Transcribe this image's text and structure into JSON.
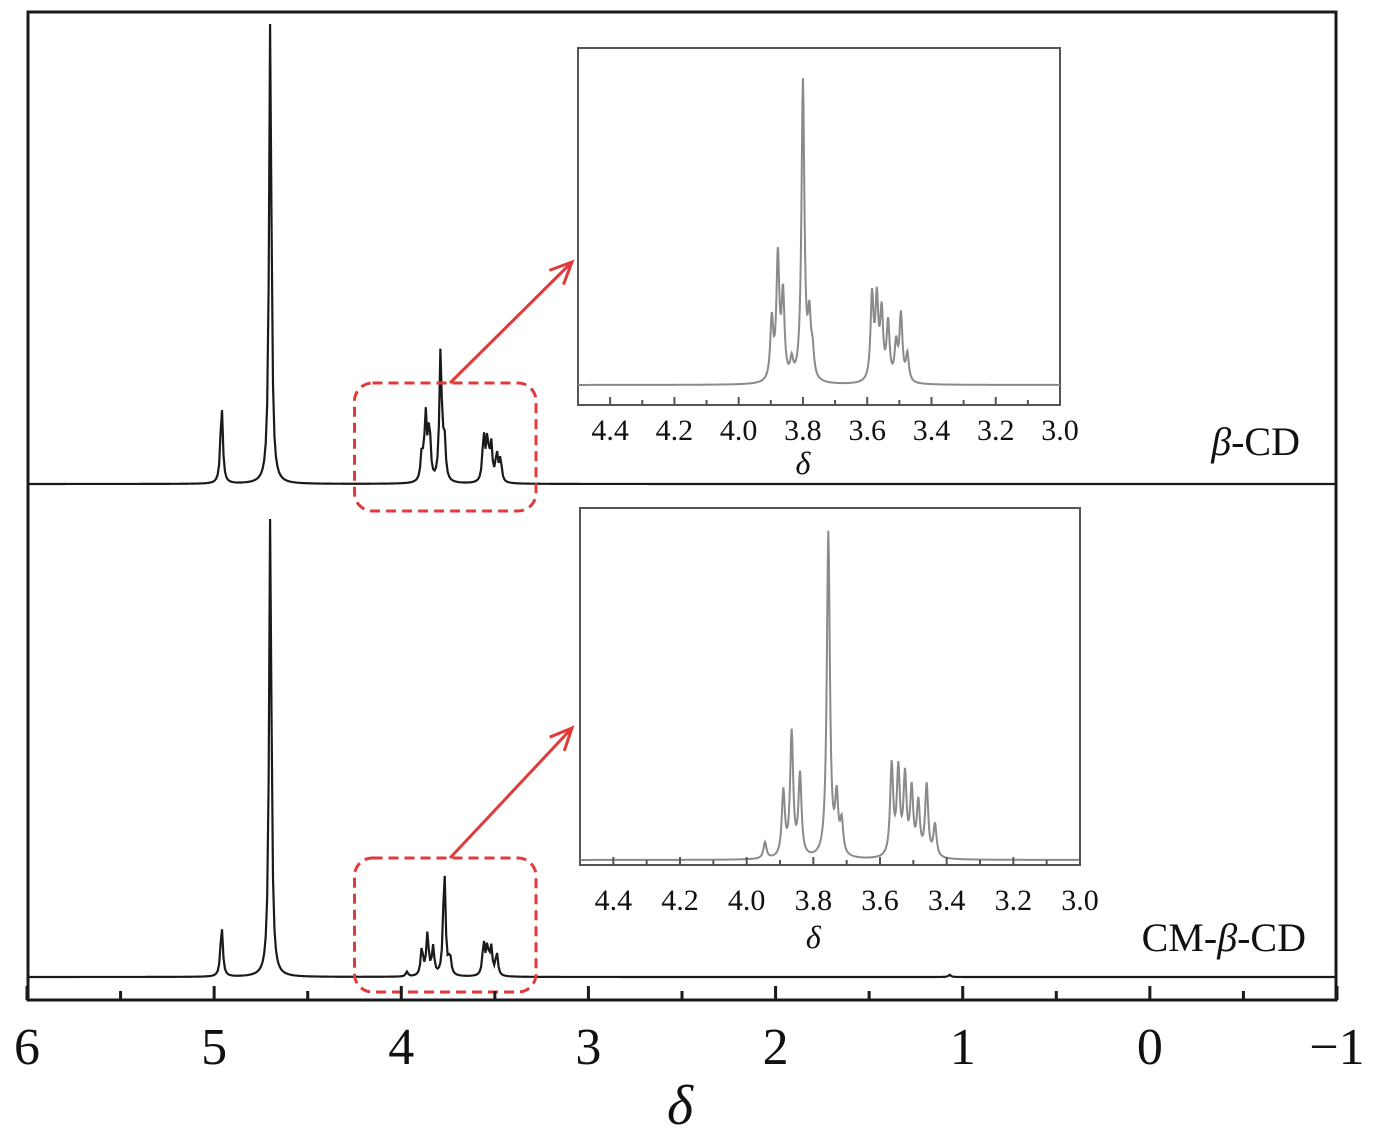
{
  "colors": {
    "frame": "#1a1a1a",
    "main_trace": "#1a1a1a",
    "inset_trace": "#8a8a8a",
    "highlight": "#e03a3a"
  },
  "chart_data": [
    {
      "type": "line",
      "role": "main spectrum",
      "x_axis": {
        "label": "δ",
        "range": [
          6,
          -1
        ],
        "reversed": true,
        "major_ticks": [
          6,
          5,
          4,
          3,
          2,
          1,
          0,
          -1
        ],
        "tick_labels": [
          "6",
          "5",
          "4",
          "3",
          "2",
          "1",
          "0",
          "−1"
        ],
        "minor_ticks": [
          5.5,
          4.5,
          3.5,
          2.5,
          1.5,
          0.5,
          -0.5
        ]
      },
      "y_axis": {
        "label": "",
        "ticks": false
      },
      "grid": false,
      "series": [
        {
          "name": "β-CD",
          "label_prefix": "",
          "label_italic": "β",
          "label_suffix": "-CD",
          "peaks": [
            {
              "x": 4.96,
              "height": 0.17
            },
            {
              "x": 4.7,
              "height": 1.0
            },
            {
              "x": 3.89,
              "height": 0.06
            },
            {
              "x": 3.87,
              "height": 0.14
            },
            {
              "x": 3.85,
              "height": 0.12
            },
            {
              "x": 3.79,
              "height": 0.28
            },
            {
              "x": 3.77,
              "height": 0.09
            },
            {
              "x": 3.56,
              "height": 0.1
            },
            {
              "x": 3.54,
              "height": 0.09
            },
            {
              "x": 3.52,
              "height": 0.08
            },
            {
              "x": 3.49,
              "height": 0.06
            },
            {
              "x": 3.47,
              "height": 0.05
            }
          ]
        },
        {
          "name": "CM-β-CD",
          "label_prefix": "CM-",
          "label_italic": "β",
          "label_suffix": "-CD",
          "peaks": [
            {
              "x": 4.96,
              "height": 0.11
            },
            {
              "x": 4.7,
              "height": 1.0
            },
            {
              "x": 3.97,
              "height": 0.01
            },
            {
              "x": 3.89,
              "height": 0.06
            },
            {
              "x": 3.86,
              "height": 0.09
            },
            {
              "x": 3.83,
              "height": 0.06
            },
            {
              "x": 3.77,
              "height": 0.23
            },
            {
              "x": 3.74,
              "height": 0.04
            },
            {
              "x": 3.56,
              "height": 0.07
            },
            {
              "x": 3.54,
              "height": 0.06
            },
            {
              "x": 3.52,
              "height": 0.06
            },
            {
              "x": 3.49,
              "height": 0.05
            },
            {
              "x": 1.07,
              "height": 0.005
            }
          ]
        }
      ],
      "highlight_region": [
        4.25,
        3.28
      ]
    },
    {
      "type": "line",
      "role": "inset (β-CD, expanded)",
      "x_axis": {
        "label": "δ",
        "range": [
          4.5,
          3.0
        ],
        "reversed": true,
        "major_ticks": [
          4.4,
          4.2,
          4.0,
          3.8,
          3.6,
          3.4,
          3.2,
          3.0
        ],
        "tick_labels": [
          "4.4",
          "4.2",
          "4.0",
          "3.8",
          "3.6",
          "3.4",
          "3.2",
          "3.0"
        ]
      },
      "series": [
        {
          "peaks": [
            {
              "x": 3.897,
              "height": 0.2
            },
            {
              "x": 3.878,
              "height": 0.41
            },
            {
              "x": 3.862,
              "height": 0.28
            },
            {
              "x": 3.835,
              "height": 0.06
            },
            {
              "x": 3.8,
              "height": 1.0
            },
            {
              "x": 3.78,
              "height": 0.19
            },
            {
              "x": 3.77,
              "height": 0.08
            },
            {
              "x": 3.585,
              "height": 0.28
            },
            {
              "x": 3.57,
              "height": 0.26
            },
            {
              "x": 3.555,
              "height": 0.22
            },
            {
              "x": 3.535,
              "height": 0.19
            },
            {
              "x": 3.51,
              "height": 0.12
            },
            {
              "x": 3.495,
              "height": 0.22
            },
            {
              "x": 3.475,
              "height": 0.09
            }
          ]
        }
      ]
    },
    {
      "type": "line",
      "role": "inset (CM-β-CD, expanded)",
      "x_axis": {
        "label": "δ",
        "range": [
          4.5,
          3.0
        ],
        "reversed": true,
        "major_ticks": [
          4.4,
          4.2,
          4.0,
          3.8,
          3.6,
          3.4,
          3.2,
          3.0
        ],
        "tick_labels": [
          "4.4",
          "4.2",
          "4.0",
          "3.8",
          "3.6",
          "3.4",
          "3.2",
          "3.0"
        ]
      },
      "series": [
        {
          "peaks": [
            {
              "x": 3.945,
              "height": 0.05
            },
            {
              "x": 3.89,
              "height": 0.2
            },
            {
              "x": 3.865,
              "height": 0.38
            },
            {
              "x": 3.84,
              "height": 0.25
            },
            {
              "x": 3.755,
              "height": 1.0
            },
            {
              "x": 3.73,
              "height": 0.17
            },
            {
              "x": 3.715,
              "height": 0.1
            },
            {
              "x": 3.565,
              "height": 0.28
            },
            {
              "x": 3.545,
              "height": 0.26
            },
            {
              "x": 3.525,
              "height": 0.24
            },
            {
              "x": 3.505,
              "height": 0.2
            },
            {
              "x": 3.485,
              "height": 0.16
            },
            {
              "x": 3.46,
              "height": 0.22
            },
            {
              "x": 3.435,
              "height": 0.1
            }
          ]
        }
      ]
    }
  ]
}
